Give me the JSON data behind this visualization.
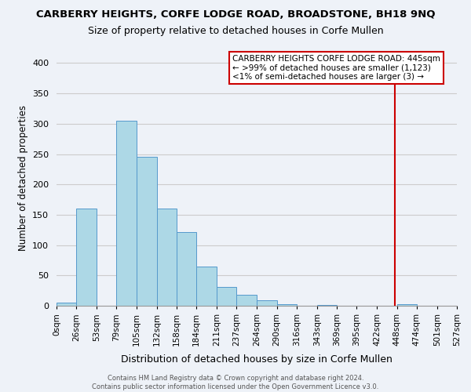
{
  "title": "CARBERRY HEIGHTS, CORFE LODGE ROAD, BROADSTONE, BH18 9NQ",
  "subtitle": "Size of property relative to detached houses in Corfe Mullen",
  "xlabel": "Distribution of detached houses by size in Corfe Mullen",
  "ylabel": "Number of detached properties",
  "bin_edges": [
    0,
    26,
    53,
    79,
    105,
    132,
    158,
    184,
    211,
    237,
    264,
    290,
    316,
    343,
    369,
    395,
    422,
    448,
    474,
    501,
    527
  ],
  "bar_heights": [
    5,
    160,
    0,
    305,
    245,
    160,
    122,
    64,
    31,
    18,
    9,
    2,
    0,
    1,
    0,
    0,
    0,
    2,
    0,
    0
  ],
  "tick_labels": [
    "0sqm",
    "26sqm",
    "53sqm",
    "79sqm",
    "105sqm",
    "132sqm",
    "158sqm",
    "184sqm",
    "211sqm",
    "237sqm",
    "264sqm",
    "290sqm",
    "316sqm",
    "343sqm",
    "369sqm",
    "395sqm",
    "422sqm",
    "448sqm",
    "474sqm",
    "501sqm",
    "527sqm"
  ],
  "bar_color": "#add8e6",
  "bar_edge_color": "#5599cc",
  "vline_x": 445,
  "vline_color": "#cc0000",
  "ylim": [
    0,
    420
  ],
  "yticks": [
    0,
    50,
    100,
    150,
    200,
    250,
    300,
    350,
    400
  ],
  "annotation_title": "CARBERRY HEIGHTS CORFE LODGE ROAD: 445sqm",
  "annotation_line1": "← >99% of detached houses are smaller (1,123)",
  "annotation_line2": "<1% of semi-detached houses are larger (3) →",
  "footer_line1": "Contains HM Land Registry data © Crown copyright and database right 2024.",
  "footer_line2": "Contains public sector information licensed under the Open Government Licence v3.0.",
  "bg_color": "#eef2f8",
  "plot_bg_color": "#eef2f8",
  "grid_color": "#cccccc"
}
